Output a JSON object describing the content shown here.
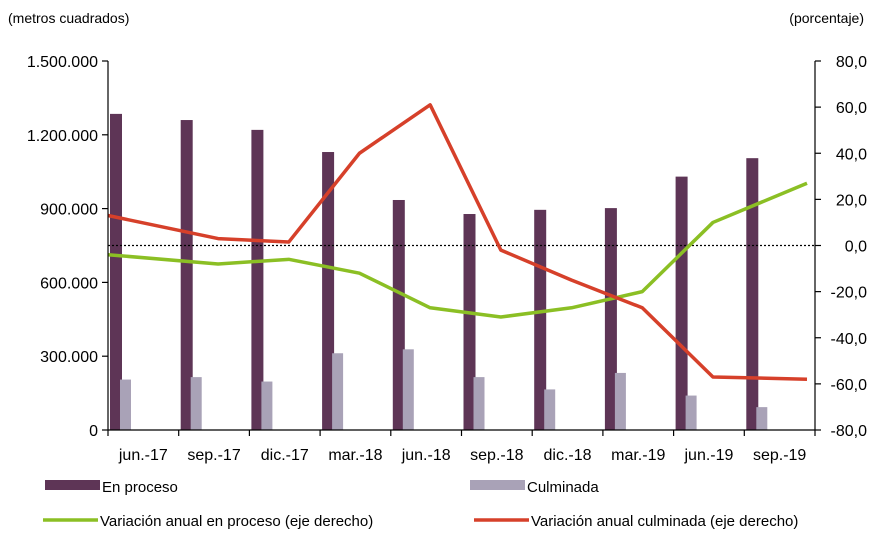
{
  "chart_data": {
    "type": "bar",
    "categories": [
      "jun.-17",
      "sep.-17",
      "dic.-17",
      "mar.-18",
      "jun.-18",
      "sep.-18",
      "dic.-18",
      "mar.-19",
      "jun.-19",
      "sep.-19"
    ],
    "left_axis": {
      "label": "(metros cuadrados)",
      "range": [
        0,
        1500000
      ],
      "ticks": [
        0,
        300000,
        600000,
        900000,
        1200000,
        1500000
      ],
      "tick_labels": [
        "0",
        "300.000",
        "600.000",
        "900.000",
        "1.200.000",
        "1.500.000"
      ]
    },
    "right_axis": {
      "label": "(porcentaje)",
      "range": [
        -80,
        80
      ],
      "ticks": [
        -80,
        -60,
        -40,
        -20,
        0,
        20,
        40,
        60,
        80
      ],
      "tick_labels": [
        "-80,0",
        "-60,0",
        "-40,0",
        "-20,0",
        "0,0",
        "20,0",
        "40,0",
        "60,0",
        "80,0"
      ]
    },
    "bar_series": [
      {
        "name": "En proceso",
        "color": "#5e3556",
        "values": [
          1285000,
          1260000,
          1220000,
          1130000,
          935000,
          878000,
          895000,
          902000,
          1030000,
          1105000
        ]
      },
      {
        "name": "Culminada",
        "color": "#a9a2b7",
        "values": [
          205000,
          215000,
          197000,
          312000,
          328000,
          215000,
          165000,
          232000,
          140000,
          93000
        ]
      }
    ],
    "line_series": [
      {
        "name": "Variación anual en proceso (eje derecho)",
        "color": "#8bbf24",
        "values": [
          -4,
          -8,
          -6,
          -12,
          -27,
          -31,
          -27,
          -20,
          10,
          27
        ]
      },
      {
        "name": "Variación anual culminada (eje derecho)",
        "color": "#d6402a",
        "values": [
          13,
          3,
          1.5,
          40,
          61,
          -2,
          -15,
          -27,
          -57,
          -58
        ]
      }
    ],
    "grid": false,
    "legend_position": "bottom"
  }
}
